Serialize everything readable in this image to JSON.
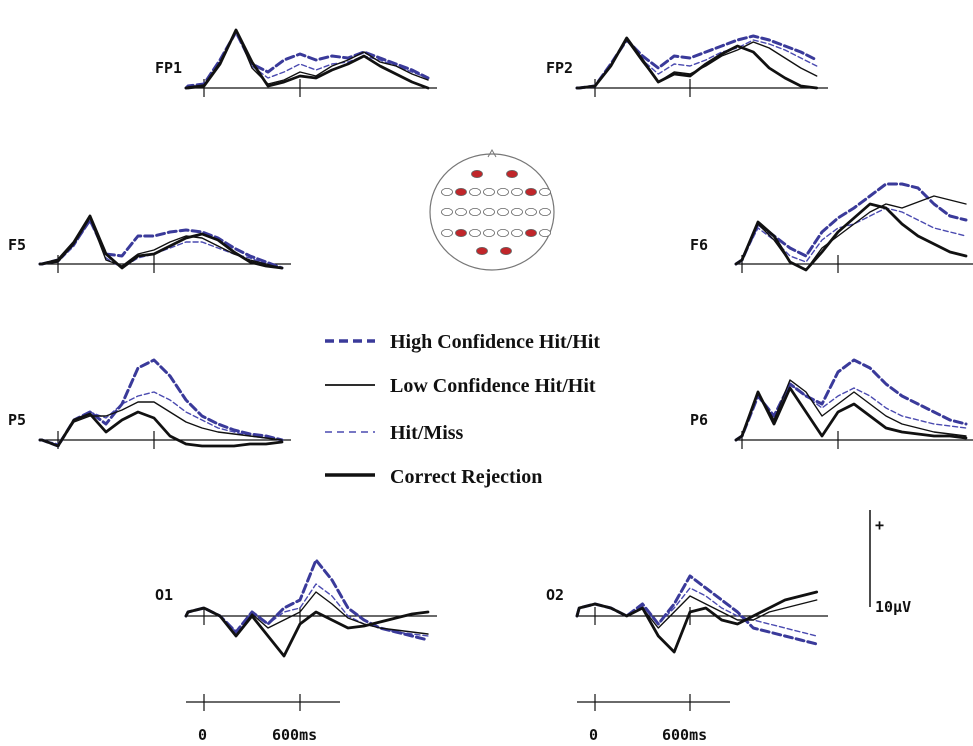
{
  "chart_data": {
    "type": "line",
    "x_unit": "ms",
    "x_ticks": [
      {
        "value": 0,
        "label": "0"
      },
      {
        "value": 600,
        "label": "600ms"
      }
    ],
    "scale_bar": {
      "top_label": "+",
      "bottom_label": "10μV",
      "value_uv": 10
    },
    "legend": [
      {
        "label": "High Confidence Hit/Hit",
        "color": "#3a3a9a",
        "style": "dashed-thick"
      },
      {
        "label": "Low Confidence Hit/Hit",
        "color": "#111111",
        "style": "solid-thin"
      },
      {
        "label": "Hit/Miss",
        "color": "#4a4ab0",
        "style": "dashed-thin"
      },
      {
        "label": "Correct Rejection",
        "color": "#111111",
        "style": "solid-thick"
      }
    ],
    "head_map": {
      "highlighted_color": "#c0262a",
      "unhighlighted_color": "#ffffff"
    },
    "x": [
      -200,
      -100,
      0,
      100,
      200,
      300,
      400,
      500,
      600,
      700,
      800,
      900,
      1000,
      1100,
      1200,
      1300,
      1400
    ],
    "panels": [
      {
        "label": "FP1",
        "series": [
          {
            "name": "High Confidence Hit/Hit",
            "values": [
              0,
              1,
              2,
              14,
              28,
              12,
              8,
              14,
              17,
              14,
              16,
              15,
              18,
              15,
              12,
              9,
              5
            ]
          },
          {
            "name": "Low Confidence Hit/Hit",
            "values": [
              0,
              0.5,
              1.5,
              13,
              29,
              10,
              2,
              4,
              8,
              6,
              11,
              14,
              18,
              13,
              11,
              7,
              4
            ]
          },
          {
            "name": "Hit/Miss",
            "values": [
              0,
              1,
              1,
              13,
              28,
              11,
              5,
              8,
              12,
              9,
              12,
              13,
              16,
              14,
              11,
              8,
              5
            ]
          },
          {
            "name": "Correct Rejection",
            "values": [
              0,
              0,
              1,
              12,
              29,
              13,
              1,
              3,
              6,
              5,
              9,
              12,
              16,
              11,
              7,
              3,
              0
            ]
          }
        ]
      },
      {
        "label": "FP2",
        "series": [
          {
            "name": "High Confidence Hit/Hit",
            "values": [
              0,
              0,
              1,
              12,
              24,
              16,
              10,
              16,
              15,
              18,
              21,
              24,
              26,
              24,
              21,
              18,
              14
            ]
          },
          {
            "name": "Low Confidence Hit/Hit",
            "values": [
              0,
              0,
              1,
              11,
              24,
              13,
              3,
              8,
              7,
              11,
              16,
              19,
              23,
              20,
              15,
              10,
              6
            ]
          },
          {
            "name": "Hit/Miss",
            "values": [
              0,
              0,
              1,
              12,
              24,
              14,
              7,
              12,
              11,
              14,
              18,
              20,
              24,
              22,
              19,
              15,
              11
            ]
          },
          {
            "name": "Correct Rejection",
            "values": [
              0,
              0,
              1,
              11,
              25,
              14,
              3,
              7,
              6,
              12,
              17,
              21,
              18,
              10,
              5,
              1,
              0
            ]
          }
        ]
      },
      {
        "label": "F5",
        "series": [
          {
            "name": "High Confidence Hit/Hit",
            "values": [
              0,
              0,
              2,
              10,
              22,
              5,
              4,
              14,
              14,
              16,
              17,
              16,
              13,
              8,
              4,
              1,
              -2
            ]
          },
          {
            "name": "Low Confidence Hit/Hit",
            "values": [
              0,
              0,
              1,
              10,
              23,
              2,
              -1,
              5,
              7,
              11,
              14,
              13,
              9,
              5,
              2,
              0,
              -2
            ]
          },
          {
            "name": "Hit/Miss",
            "values": [
              0,
              0,
              1,
              9,
              22,
              3,
              -2,
              3,
              5,
              8,
              11,
              11,
              8,
              5,
              3,
              0,
              -2
            ]
          },
          {
            "name": "Correct Rejection",
            "values": [
              0,
              0,
              2,
              11,
              24,
              5,
              -2,
              4,
              5,
              9,
              13,
              15,
              12,
              6,
              1,
              -1,
              -2
            ]
          }
        ]
      },
      {
        "label": "F6",
        "series": [
          {
            "name": "High Confidence Hit/Hit",
            "values": [
              0,
              0,
              2,
              20,
              14,
              8,
              4,
              16,
              23,
              28,
              34,
              40,
              40,
              38,
              30,
              24,
              22
            ]
          },
          {
            "name": "Low Confidence Hit/Hit",
            "values": [
              0,
              0,
              2,
              20,
              12,
              1,
              -3,
              8,
              14,
              20,
              26,
              30,
              28,
              31,
              34,
              32,
              30
            ]
          },
          {
            "name": "Hit/Miss",
            "values": [
              0,
              0,
              2,
              18,
              12,
              4,
              1,
              12,
              18,
              20,
              24,
              28,
              26,
              22,
              18,
              16,
              14
            ]
          },
          {
            "name": "Correct Rejection",
            "values": [
              0,
              0,
              2,
              21,
              14,
              1,
              -3,
              6,
              16,
              23,
              30,
              28,
              20,
              14,
              10,
              6,
              4
            ]
          }
        ]
      },
      {
        "label": "P5",
        "series": [
          {
            "name": "High Confidence Hit/Hit",
            "values": [
              0,
              0,
              -3,
              10,
              14,
              8,
              18,
              36,
              40,
              32,
              20,
              12,
              8,
              5,
              3,
              2,
              0
            ]
          },
          {
            "name": "Low Confidence Hit/Hit",
            "values": [
              0,
              0,
              -3,
              9,
              12,
              12,
              15,
              19,
              19,
              14,
              9,
              6,
              4,
              3,
              2,
              1,
              0
            ]
          },
          {
            "name": "Hit/Miss",
            "values": [
              0,
              0,
              -2,
              10,
              14,
              11,
              18,
              22,
              24,
              20,
              14,
              10,
              6,
              4,
              2,
              1,
              0
            ]
          },
          {
            "name": "Correct Rejection",
            "values": [
              0,
              0,
              -3,
              10,
              13,
              4,
              10,
              14,
              11,
              2,
              -2,
              -3,
              -3,
              -3,
              -2,
              -2,
              -1
            ]
          }
        ]
      },
      {
        "label": "P6",
        "series": [
          {
            "name": "High Confidence Hit/Hit",
            "values": [
              0,
              0,
              2,
              22,
              12,
              28,
              22,
              18,
              34,
              40,
              36,
              28,
              22,
              18,
              14,
              10,
              8
            ]
          },
          {
            "name": "Low Confidence Hit/Hit",
            "values": [
              0,
              0,
              2,
              24,
              10,
              30,
              24,
              12,
              18,
              24,
              18,
              12,
              8,
              6,
              4,
              3,
              2
            ]
          },
          {
            "name": "Hit/Miss",
            "values": [
              0,
              0,
              2,
              22,
              10,
              28,
              22,
              16,
              22,
              26,
              22,
              16,
              12,
              10,
              8,
              7,
              6
            ]
          },
          {
            "name": "Correct Rejection",
            "values": [
              0,
              0,
              2,
              24,
              8,
              26,
              14,
              2,
              14,
              18,
              12,
              6,
              4,
              3,
              2,
              2,
              1
            ]
          }
        ]
      },
      {
        "label": "O1",
        "series": [
          {
            "name": "High Confidence Hit/Hit",
            "values": [
              0,
              2,
              4,
              0,
              -8,
              2,
              -4,
              4,
              8,
              28,
              18,
              4,
              -2,
              -6,
              -8,
              -10,
              -12
            ]
          },
          {
            "name": "Low Confidence Hit/Hit",
            "values": [
              0,
              2,
              4,
              0,
              -10,
              1,
              -6,
              -2,
              2,
              12,
              6,
              -1,
              -4,
              -6,
              -7,
              -8,
              -9
            ]
          },
          {
            "name": "Hit/Miss",
            "values": [
              0,
              2,
              4,
              0,
              -8,
              2,
              -4,
              2,
              4,
              16,
              10,
              0,
              -4,
              -6,
              -8,
              -9,
              -10
            ]
          },
          {
            "name": "Correct Rejection",
            "values": [
              0,
              2,
              4,
              0,
              -10,
              0,
              -10,
              -20,
              -4,
              2,
              -2,
              -6,
              -5,
              -3,
              -1,
              1,
              2
            ]
          }
        ]
      },
      {
        "label": "O2",
        "series": [
          {
            "name": "High Confidence Hit/Hit",
            "values": [
              0,
              4,
              6,
              4,
              0,
              6,
              -4,
              6,
              20,
              14,
              8,
              2,
              -6,
              -8,
              -10,
              -12,
              -14
            ]
          },
          {
            "name": "Low Confidence Hit/Hit",
            "values": [
              0,
              4,
              6,
              4,
              0,
              4,
              -6,
              2,
              10,
              6,
              2,
              -2,
              -2,
              2,
              4,
              6,
              8
            ]
          },
          {
            "name": "Hit/Miss",
            "values": [
              0,
              4,
              6,
              4,
              0,
              5,
              -4,
              4,
              14,
              10,
              4,
              0,
              -2,
              -4,
              -6,
              -8,
              -10
            ]
          },
          {
            "name": "Correct Rejection",
            "values": [
              0,
              4,
              6,
              4,
              0,
              4,
              -10,
              -18,
              2,
              4,
              -2,
              -4,
              0,
              4,
              8,
              10,
              12
            ]
          }
        ]
      }
    ]
  }
}
